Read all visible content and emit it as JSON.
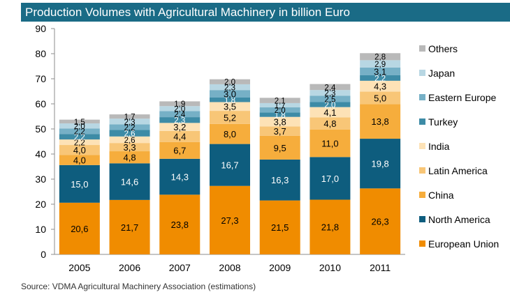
{
  "title": "Production Volumes with Agricultural Machinery in billion Euro",
  "source": "Source: VDMA Agricultural Machinery Association (estimations)",
  "colors": {
    "title_bg": "#1a6b86",
    "European Union": "#f08c00",
    "North America": "#0e5d7e",
    "China": "#f6ad3c",
    "Latin America": "#f8c677",
    "India": "#fde2b6",
    "Turkey": "#3d8ba6",
    "Eastern Europe": "#76b0c6",
    "Japan": "#b8d7e3",
    "Others": "#b9b9b9"
  },
  "chart_data": {
    "type": "bar",
    "stacked": true,
    "title": "Production Volumes with Agricultural Machinery in billion Euro",
    "categories": [
      "2005",
      "2006",
      "2007",
      "2008",
      "2009",
      "2010",
      "2011"
    ],
    "ylim": [
      0,
      90
    ],
    "yticks": [
      0,
      10,
      20,
      30,
      40,
      50,
      60,
      70,
      80,
      90
    ],
    "legend_position": "right",
    "series": [
      {
        "name": "European Union",
        "values": [
          20.6,
          21.7,
          23.8,
          27.3,
          21.5,
          21.8,
          26.3
        ],
        "labels": [
          "20,6",
          "21,7",
          "23,8",
          "27,3",
          "21,5",
          "21,8",
          "26,3"
        ]
      },
      {
        "name": "North America",
        "values": [
          15.0,
          14.6,
          14.3,
          16.7,
          16.3,
          17.0,
          19.8
        ],
        "labels": [
          "15,0",
          "14,6",
          "14,3",
          "16,7",
          "16,3",
          "17,0",
          "19,8"
        ]
      },
      {
        "name": "China",
        "values": [
          4.0,
          4.8,
          6.7,
          8.0,
          9.5,
          11.0,
          13.8
        ],
        "labels": [
          "4,0",
          "4,8",
          "6,7",
          "8,0",
          "9,5",
          "11,0",
          "13,8"
        ]
      },
      {
        "name": "Latin America",
        "values": [
          4.0,
          3.3,
          4.4,
          5.2,
          3.7,
          4.8,
          5.0
        ],
        "labels": [
          "4,0",
          "3,3",
          "4,4",
          "5,2",
          "3,7",
          "4,8",
          "5,0"
        ]
      },
      {
        "name": "India",
        "values": [
          2.2,
          2.6,
          3.2,
          3.5,
          3.8,
          4.1,
          4.3
        ],
        "labels": [
          "2,2",
          "2,6",
          "3,2",
          "3,5",
          "3,8",
          "4,1",
          "4,3"
        ]
      },
      {
        "name": "Turkey",
        "values": [
          2.2,
          2.6,
          2.3,
          1.8,
          1.8,
          2.0,
          2.2
        ],
        "labels": [
          "2,2",
          "2,6",
          "2,3",
          "1,8",
          "1,8",
          "2,0",
          "2,2"
        ]
      },
      {
        "name": "Eastern Europe",
        "values": [
          2.2,
          2.2,
          2.4,
          3.0,
          2.0,
          2.5,
          3.1
        ],
        "labels": [
          "2,2",
          "2,2",
          "2,4",
          "3,0",
          "2,0",
          "2,5",
          "3,1"
        ]
      },
      {
        "name": "Japan",
        "values": [
          2.0,
          2.3,
          2.0,
          2.3,
          1.7,
          2.3,
          2.9
        ],
        "labels": [
          "2,0",
          "2,3",
          "2,0",
          "2,3",
          "1,7",
          "2,3",
          "2,9"
        ]
      },
      {
        "name": "Others",
        "values": [
          1.5,
          1.7,
          1.9,
          2.0,
          2.1,
          2.4,
          2.8
        ],
        "labels": [
          "1,5",
          "1,7",
          "1,9",
          "2,0",
          "2,1",
          "2,4",
          "2,8"
        ]
      }
    ]
  }
}
